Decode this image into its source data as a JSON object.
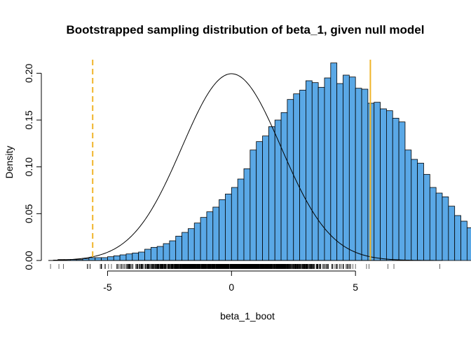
{
  "chart_data": {
    "type": "histogram",
    "title": "Bootstrapped sampling distribution of beta_1, given null model",
    "xlabel": "beta_1_boot",
    "ylabel": "Density",
    "xlim": [
      -7.5,
      8.5
    ],
    "ylim": [
      0,
      0.21
    ],
    "x_ticks": [
      {
        "value": -5,
        "label": "-5"
      },
      {
        "value": 0,
        "label": "0"
      },
      {
        "value": 5,
        "label": "5"
      }
    ],
    "y_ticks": [
      {
        "value": 0.0,
        "label": "0.00"
      },
      {
        "value": 0.05,
        "label": "0.05"
      },
      {
        "value": 0.1,
        "label": "0.10"
      },
      {
        "value": 0.15,
        "label": "0.15"
      },
      {
        "value": 0.2,
        "label": "0.20"
      }
    ],
    "bin_width": 0.25,
    "bins_start": -7.0,
    "densities": [
      0.001,
      0.001,
      0.001,
      0.001,
      0.002,
      0.003,
      0.003,
      0.003,
      0.004,
      0.005,
      0.006,
      0.007,
      0.008,
      0.009,
      0.012,
      0.014,
      0.015,
      0.018,
      0.021,
      0.026,
      0.03,
      0.034,
      0.04,
      0.046,
      0.052,
      0.057,
      0.065,
      0.071,
      0.078,
      0.087,
      0.098,
      0.118,
      0.127,
      0.133,
      0.143,
      0.15,
      0.158,
      0.172,
      0.178,
      0.182,
      0.192,
      0.19,
      0.185,
      0.195,
      0.211,
      0.189,
      0.198,
      0.196,
      0.184,
      0.183,
      0.168,
      0.169,
      0.162,
      0.16,
      0.152,
      0.148,
      0.118,
      0.108,
      0.104,
      0.092,
      0.078,
      0.072,
      0.068,
      0.058,
      0.048,
      0.042,
      0.035,
      0.03,
      0.025,
      0.02,
      0.016,
      0.015,
      0.013,
      0.01,
      0.008,
      0.007,
      0.005,
      0.004,
      0.003,
      0.002,
      0.002,
      0.001,
      0.001
    ],
    "bar_color": "#5aa8e6",
    "density_curve": {
      "type": "normal",
      "mean": 0,
      "sd": 2,
      "color": "#000000"
    },
    "vlines": [
      {
        "x": -5.6,
        "style": "dashed",
        "color": "#f0b429"
      },
      {
        "x": 5.6,
        "style": "solid",
        "color": "#f0b429"
      }
    ],
    "rug": true,
    "rug_range": [
      -7.3,
      8.4
    ],
    "grid": false,
    "legend": "none"
  }
}
